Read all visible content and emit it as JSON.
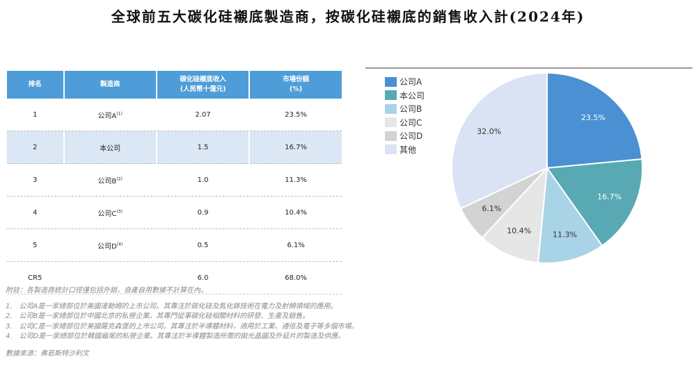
{
  "title": "全球前五大碳化硅襯底製造商，按碳化硅襯底的銷售收入計(2024年)",
  "table": {
    "headers": [
      "排名",
      "製造商",
      "碳化硅襯底收入\n(人民幣十億元)",
      "市場份額\n(%)"
    ],
    "rows": [
      [
        "1",
        "公司A",
        "(1)",
        "2.07",
        "23.5%"
      ],
      [
        "2",
        "本公司",
        "",
        "1.5",
        "16.7%"
      ],
      [
        "3",
        "公司B",
        "(2)",
        "1.0",
        "11.3%"
      ],
      [
        "4",
        "公司C",
        "(3)",
        "0.9",
        "10.4%"
      ],
      [
        "5",
        "公司D",
        "(4)",
        "0.5",
        "6.1%"
      ],
      [
        "CR5",
        "",
        "",
        "6.0",
        "68.0%"
      ]
    ]
  },
  "notes": {
    "remark": "附註：各製造商統計口徑僅包括外銷，自產自用數據不計算在內。",
    "items": [
      "1.　公司A是一家總部位於美國達勒姆的上市公司。其專注於碳化硅及氮化鎵技術在電力及射頻領域的應用。",
      "2.　公司B是一家總部位於中國北京的私營企業。其專門從事碳化硅相關材料的研發、生產及銷售。",
      "3.　公司C是一家總部位於美國薩克森堡的上市公司。其專注於半導體材料，適用於工業、通信及電子等多個市場。",
      "4.　公司D是一家總部位於韓國龜尾的私營企業。其專注於半導體製造所需的拋光晶圓及外延片的製造及供應。"
    ],
    "source": "數據來源：弗若斯特沙利文"
  },
  "chart_data": {
    "type": "pie",
    "title": "",
    "categories": [
      "公司A",
      "本公司",
      "公司B",
      "公司C",
      "公司D",
      "其他"
    ],
    "values": [
      23.5,
      16.7,
      11.3,
      10.4,
      6.1,
      32.0
    ],
    "labels": [
      "23.5%",
      "16.7%",
      "11.3%",
      "10.4%",
      "6.1%",
      "32.0%"
    ],
    "colors": [
      "#4a90d2",
      "#58a9b3",
      "#a9d3e6",
      "#e6e6e6",
      "#d3d3d3",
      "#d9e3f3"
    ],
    "legend": "left",
    "start": "top-clockwise"
  }
}
